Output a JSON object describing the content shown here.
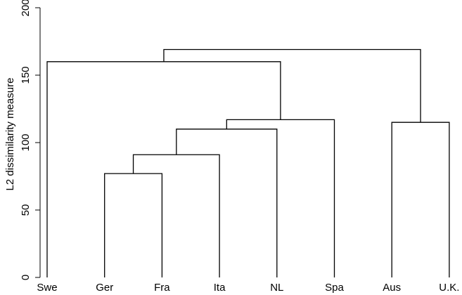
{
  "chart_data": {
    "type": "dendrogram",
    "ylabel": "L2 dissimilarity measure",
    "ylim": [
      0,
      200
    ],
    "yticks": [
      0,
      50,
      100,
      150,
      200
    ],
    "leaves": [
      "Swe",
      "Ger",
      "Fra",
      "Ita",
      "NL",
      "Spa",
      "Aus",
      "U.K."
    ],
    "merges": [
      {
        "left": "Ger",
        "right": "Fra",
        "height": 77
      },
      {
        "left": "Ger+Fra",
        "right": "Ita",
        "height": 91
      },
      {
        "left": "Ger+Fra+Ita",
        "right": "NL",
        "height": 110
      },
      {
        "left": "Ger+Fra+Ita+NL",
        "right": "Spa",
        "height": 117
      },
      {
        "left": "Swe",
        "right": "Ger+Fra+Ita+NL+Spa",
        "height": 160
      },
      {
        "left": "Aus",
        "right": "U.K.",
        "height": 115
      },
      {
        "left": "Swe+Ger+Fra+Ita+NL+Spa",
        "right": "Aus+U.K.",
        "height": 169
      }
    ],
    "grid": false,
    "colors": {
      "lines": "#000000",
      "background": "#ffffff"
    }
  }
}
